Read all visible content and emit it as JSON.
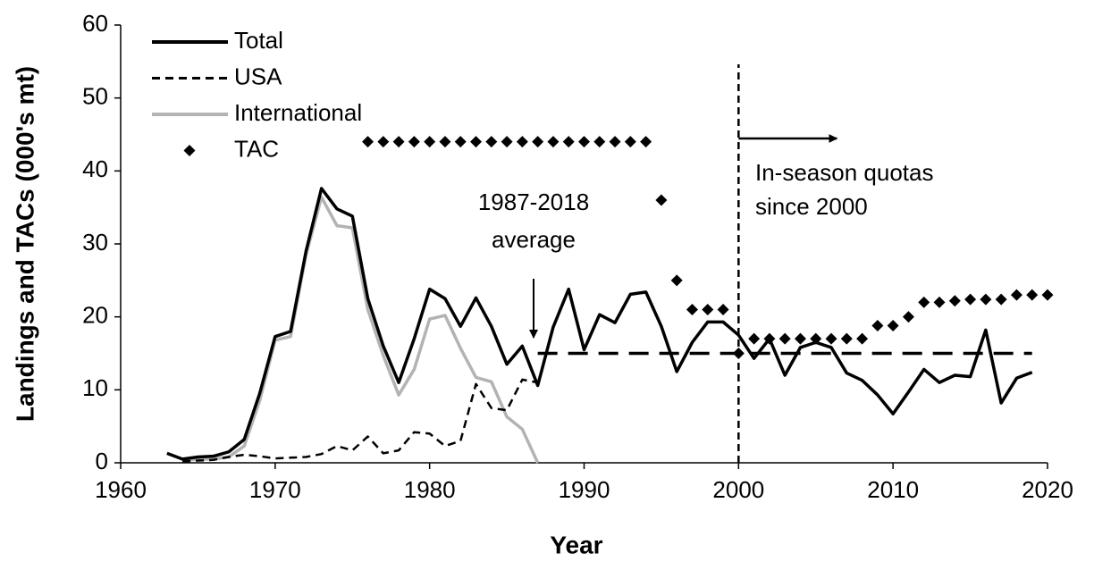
{
  "chart_data": {
    "type": "line",
    "x_label": "Year",
    "y_label": "Landings and TACs (000's mt)",
    "xlim": [
      1960,
      2020
    ],
    "xticks": [
      1960,
      1970,
      1980,
      1990,
      2000,
      2010,
      2020
    ],
    "ylim": [
      0,
      60
    ],
    "yticks": [
      0,
      10,
      20,
      30,
      40,
      50,
      60
    ],
    "legend": "top-left",
    "series": [
      {
        "name": "Total",
        "color": "#000000",
        "style": "solid",
        "x": [
          1963,
          1964,
          1965,
          1966,
          1967,
          1968,
          1969,
          1970,
          1971,
          1972,
          1973,
          1974,
          1975,
          1976,
          1977,
          1978,
          1979,
          1980,
          1981,
          1982,
          1983,
          1984,
          1985,
          1986,
          1987,
          1988,
          1989,
          1990,
          1991,
          1992,
          1993,
          1994,
          1995,
          1996,
          1997,
          1998,
          1999,
          2000,
          2001,
          2002,
          2003,
          2004,
          2005,
          2006,
          2007,
          2008,
          2009,
          2010,
          2011,
          2012,
          2013,
          2014,
          2015,
          2016,
          2017,
          2018,
          2019
        ],
        "values": [
          1.3,
          0.5,
          0.8,
          0.9,
          1.5,
          3.2,
          9.5,
          17.3,
          18,
          29,
          37.6,
          34.8,
          33.8,
          22.5,
          16,
          11,
          17,
          23.8,
          22.5,
          18.7,
          22.6,
          18.7,
          13.5,
          16,
          10.6,
          18.6,
          23.8,
          15.5,
          20.3,
          19.2,
          23.1,
          23.4,
          18.7,
          12.5,
          16.5,
          19.3,
          19.3,
          17.5,
          14.3,
          17,
          12,
          15.8,
          16.5,
          15.8,
          12.3,
          11.3,
          9.3,
          6.7,
          9.7,
          12.8,
          11,
          12,
          11.8,
          18.2,
          8.2,
          11.6,
          12.4
        ]
      },
      {
        "name": "USA",
        "color": "#000000",
        "style": "dashed",
        "x": [
          1964,
          1965,
          1966,
          1967,
          1968,
          1969,
          1970,
          1971,
          1972,
          1973,
          1974,
          1975,
          1976,
          1977,
          1978,
          1979,
          1980,
          1981,
          1982,
          1983,
          1984,
          1985,
          1986,
          1987
        ],
        "values": [
          0.2,
          0.3,
          0.4,
          0.8,
          1.1,
          0.9,
          0.6,
          0.7,
          0.8,
          1.2,
          2.3,
          1.7,
          3.6,
          1.3,
          1.7,
          4.2,
          4,
          2.3,
          3,
          10.8,
          7.5,
          7.2,
          11.4,
          11
        ]
      },
      {
        "name": "International",
        "color": "#b3b3b3",
        "style": "solid",
        "x": [
          1964,
          1965,
          1966,
          1967,
          1968,
          1969,
          1970,
          1971,
          1972,
          1973,
          1974,
          1975,
          1976,
          1977,
          1978,
          1979,
          1980,
          1981,
          1982,
          1983,
          1984,
          1985,
          1986,
          1987
        ],
        "values": [
          0.3,
          0.5,
          0.5,
          0.8,
          2.3,
          8.5,
          16.8,
          17.3,
          28.5,
          36.4,
          32.5,
          32.2,
          21,
          14.7,
          9.3,
          12.8,
          19.7,
          20.2,
          15.7,
          11.7,
          11.1,
          6.3,
          4.6,
          0
        ]
      },
      {
        "name": "TAC",
        "color": "#000000",
        "style": "marker",
        "x": [
          1976,
          1977,
          1978,
          1979,
          1980,
          1981,
          1982,
          1983,
          1984,
          1985,
          1986,
          1987,
          1988,
          1989,
          1990,
          1991,
          1992,
          1993,
          1994,
          1995,
          1996,
          1997,
          1998,
          1999,
          2000,
          2001,
          2002,
          2003,
          2004,
          2005,
          2006,
          2007,
          2008,
          2009,
          2010,
          2011,
          2012,
          2013,
          2014,
          2015,
          2016,
          2017,
          2018,
          2019,
          2020
        ],
        "values": [
          44,
          44,
          44,
          44,
          44,
          44,
          44,
          44,
          44,
          44,
          44,
          44,
          44,
          44,
          44,
          44,
          44,
          44,
          44,
          36,
          25,
          21,
          21,
          21,
          15,
          17,
          17,
          17,
          17,
          17,
          17,
          17,
          17,
          18.8,
          18.8,
          20,
          22,
          22,
          22.2,
          22.4,
          22.4,
          22.4,
          23,
          23,
          23
        ]
      }
    ],
    "average_line": {
      "value": 15,
      "x": [
        1987,
        2019
      ]
    },
    "quota_start": 2000,
    "annotations": [
      {
        "lines": [
          "1987-2018",
          "average"
        ]
      },
      {
        "lines": [
          "In-season quotas",
          "since 2000"
        ]
      }
    ]
  }
}
